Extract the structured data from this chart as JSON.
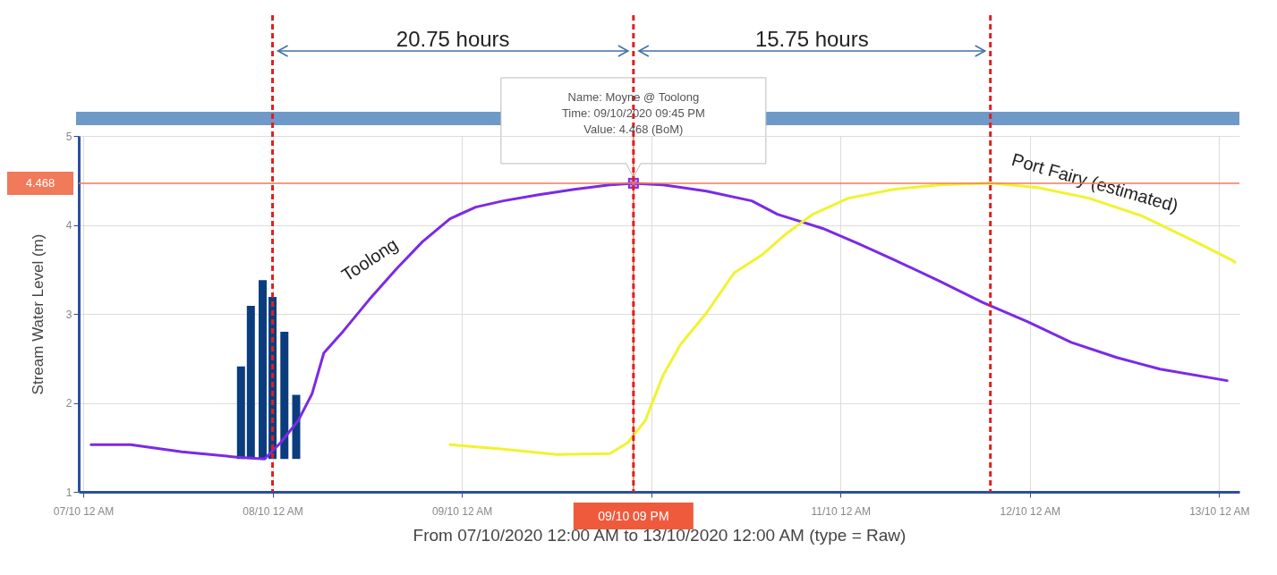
{
  "chart_data": {
    "type": "line",
    "xlabel": "From 07/10/2020 12:00 AM to 13/10/2020 12:00 AM (type = Raw)",
    "ylabel": "Stream Water Level (m)",
    "xlim": [
      "2020-10-07T00:00",
      "2020-10-13T02:00"
    ],
    "ylim": [
      1,
      5
    ],
    "yticks": [
      1,
      2,
      3,
      4,
      5
    ],
    "xticks": [
      {
        "value": "2020-10-07T00:00",
        "label": "07/10 12 AM"
      },
      {
        "value": "2020-10-08T00:00",
        "label": "08/10 12 AM"
      },
      {
        "value": "2020-10-09T00:00",
        "label": "09/10 12 AM"
      },
      {
        "value": "2020-10-10T00:00",
        "label": null
      },
      {
        "value": "2020-10-11T00:00",
        "label": "11/10 12 AM"
      },
      {
        "value": "2020-10-12T00:00",
        "label": "12/10 12 AM"
      },
      {
        "value": "2020-10-13T00:00",
        "label": "13/10 12 AM"
      }
    ],
    "grid": true,
    "legend": false,
    "series": [
      {
        "name": "Toolong",
        "color": "#7b2ae6",
        "x": [
          "2020-10-07T01:00",
          "2020-10-07T06:00",
          "2020-10-07T12:30",
          "2020-10-07T19:30",
          "2020-10-07T23:00",
          "2020-10-08T01:00",
          "2020-10-08T03:15",
          "2020-10-08T05:00",
          "2020-10-08T06:30",
          "2020-10-08T09:00",
          "2020-10-08T12:15",
          "2020-10-08T15:45",
          "2020-10-08T19:00",
          "2020-10-08T22:30",
          "2020-10-09T01:45",
          "2020-10-09T05:15",
          "2020-10-09T09:45",
          "2020-10-09T14:15",
          "2020-10-09T18:45",
          "2020-10-09T21:45",
          "2020-10-10T01:30",
          "2020-10-10T07:00",
          "2020-10-10T12:45",
          "2020-10-10T16:00",
          "2020-10-10T21:45",
          "2020-10-11T02:15",
          "2020-10-11T06:45",
          "2020-10-11T12:30",
          "2020-10-11T18:00",
          "2020-10-11T23:45",
          "2020-10-12T05:15",
          "2020-10-12T11:00",
          "2020-10-12T16:30",
          "2020-10-13T01:00"
        ],
        "values": [
          1.53,
          1.53,
          1.45,
          1.39,
          1.37,
          1.55,
          1.8,
          2.1,
          2.56,
          2.81,
          3.16,
          3.51,
          3.81,
          4.07,
          4.2,
          4.27,
          4.34,
          4.4,
          4.45,
          4.468,
          4.45,
          4.38,
          4.27,
          4.12,
          3.96,
          3.79,
          3.61,
          3.37,
          3.13,
          2.91,
          2.68,
          2.51,
          2.38,
          2.25
        ]
      },
      {
        "name": "Port Fairy  (estimated)",
        "color": "#f2f230",
        "x": [
          "2020-10-08T22:30",
          "2020-10-09T05:15",
          "2020-10-09T12:00",
          "2020-10-09T18:45",
          "2020-10-09T21:00",
          "2020-10-09T23:15",
          "2020-10-10T01:30",
          "2020-10-10T03:45",
          "2020-10-10T07:00",
          "2020-10-10T10:30",
          "2020-10-10T14:00",
          "2020-10-10T17:15",
          "2020-10-10T20:30",
          "2020-10-11T01:00",
          "2020-10-11T06:45",
          "2020-10-11T12:30",
          "2020-10-11T19:00",
          "2020-10-12T01:00",
          "2020-10-12T07:30",
          "2020-10-12T14:15",
          "2020-10-12T21:00",
          "2020-10-13T01:30",
          "2020-10-13T02:00"
        ],
        "values": [
          1.53,
          1.48,
          1.42,
          1.43,
          1.55,
          1.8,
          2.31,
          2.66,
          3.01,
          3.46,
          3.66,
          3.91,
          4.12,
          4.3,
          4.4,
          4.45,
          4.47,
          4.42,
          4.3,
          4.1,
          3.81,
          3.61,
          3.58
        ]
      },
      {
        "type": "bar",
        "color": "#0b3d7e",
        "x": [
          "2020-10-07T20:00",
          "2020-10-07T21:15",
          "2020-10-07T22:45",
          "2020-10-08T00:00",
          "2020-10-08T01:30",
          "2020-10-08T03:00"
        ],
        "base": [
          1.37,
          1.37,
          1.37,
          1.37,
          1.37,
          1.37
        ],
        "values": [
          1.04,
          1.72,
          2.01,
          1.82,
          1.43,
          0.72
        ]
      }
    ],
    "ref_lines": [
      {
        "axis": "y",
        "value": 4.468,
        "label": "4.468",
        "color": "#f07a5a",
        "line_style": "solid"
      },
      {
        "axis": "x",
        "value": "2020-10-09T21:45",
        "label": "09/10 09 PM",
        "color": "#e0805a",
        "line_style": "solid"
      },
      {
        "axis": "x",
        "value": "2020-10-08T00:00",
        "color": "#e01e1e",
        "line_style": "dashed"
      },
      {
        "axis": "x",
        "value": "2020-10-09T21:45",
        "color": "#e01e1e",
        "line_style": "dashed"
      },
      {
        "axis": "x",
        "value": "2020-10-11T19:00",
        "color": "#e01e1e",
        "line_style": "dashed"
      }
    ],
    "annotations": [
      "20.75 hours",
      "15.75 hours",
      "Name: Moyne @ Toolong\nTime: 09/10/2020 09:45 PM\nValue: 4.468 (BoM)"
    ]
  }
}
